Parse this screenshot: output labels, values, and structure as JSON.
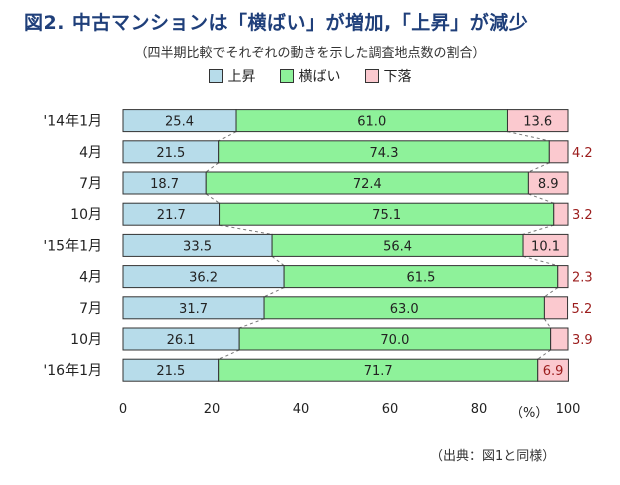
{
  "title": "図2. 中古マンションは「横ばい」が増加,「上昇」が減少",
  "subtitle": "（四半期比較でそれぞれの動きを示した調査地点数の割合）",
  "unit": "（%）",
  "source": "（出典：図1と同様）",
  "chart_data": {
    "type": "bar",
    "orientation": "horizontal",
    "stacked": true,
    "categories": [
      "'14年1月",
      "4月",
      "7月",
      "10月",
      "'15年1月",
      "4月",
      "7月",
      "10月",
      "'16年1月"
    ],
    "series": [
      {
        "name": "上昇",
        "color": "#b7dcea",
        "values": [
          25.4,
          21.5,
          18.7,
          21.7,
          33.5,
          36.2,
          31.7,
          26.1,
          21.5
        ],
        "labels": [
          "25.4",
          "21.5",
          "18.7",
          "21.7",
          "33.5",
          "36.2",
          "31.7",
          "26.1",
          "21.5"
        ]
      },
      {
        "name": "横ばい",
        "color": "#8ef29a",
        "values": [
          61.0,
          74.3,
          72.4,
          75.1,
          56.4,
          61.5,
          63.0,
          70.0,
          71.7
        ],
        "labels": [
          "61.0",
          "74.3",
          "72.4",
          "75.1",
          "56.4",
          "61.5",
          "63.0",
          "70.0",
          "71.7"
        ]
      },
      {
        "name": "下落",
        "color": "#fbc9cf",
        "values": [
          13.6,
          4.2,
          8.9,
          3.2,
          10.1,
          2.3,
          5.2,
          3.9,
          6.9
        ],
        "labels": [
          "13.6",
          "4.2",
          "8.9",
          "3.2",
          "10.1",
          "2.3",
          "5.2",
          "3.9",
          "6.9"
        ]
      }
    ],
    "xlim": [
      0,
      100
    ],
    "xticks": [
      "0",
      "20",
      "40",
      "60",
      "80",
      "100"
    ],
    "grid": false,
    "legend": "top",
    "label_color_outside": "#9b1c1c"
  }
}
